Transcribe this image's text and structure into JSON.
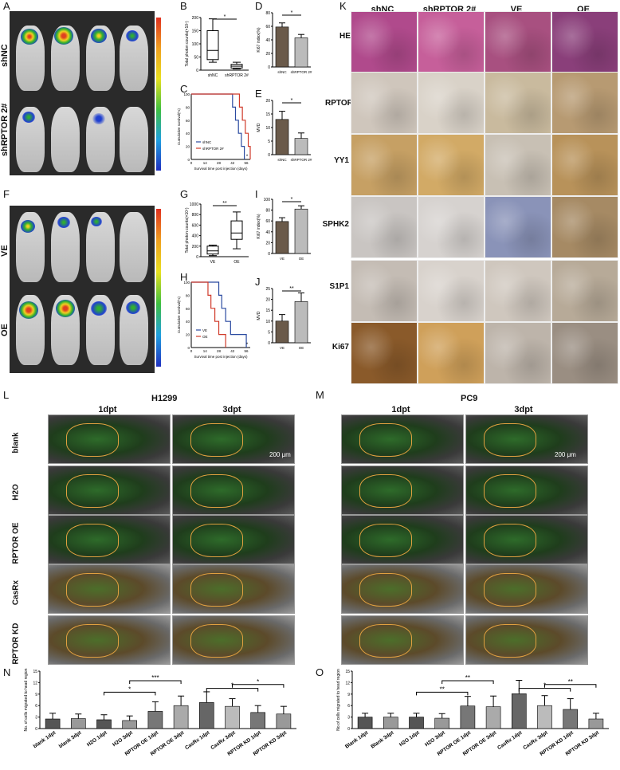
{
  "panels": {
    "A": "A",
    "B": "B",
    "C": "C",
    "D": "D",
    "E": "E",
    "F": "F",
    "G": "G",
    "H": "H",
    "I": "I",
    "J": "J",
    "K": "K",
    "L": "L",
    "M": "M",
    "N": "N",
    "O": "O"
  },
  "bioluminescence": {
    "top_groups": [
      "shNC",
      "shRPTOR 2#"
    ],
    "bottom_groups": [
      "VE",
      "OE"
    ]
  },
  "ihc": {
    "columns": [
      "shNC",
      "shRPTOR 2#",
      "VE",
      "OE"
    ],
    "rows": [
      "HE",
      "RPTOR",
      "YY1",
      "SPHK2",
      "S1P1",
      "Ki67"
    ]
  },
  "zebrafish": {
    "left_title": "H1299",
    "right_title": "PC9",
    "times": [
      "1dpt",
      "3dpt"
    ],
    "rows": [
      "blank",
      "H2O",
      "RPTOR OE",
      "CasRx",
      "RPTOR KD"
    ],
    "scale": "200 μm"
  },
  "chart_data": [
    {
      "panel": "B",
      "type": "box",
      "ylabel": "Total photon counts(×10⁷)",
      "categories": [
        "shNC",
        "shRPTOR 2#"
      ],
      "boxes": [
        {
          "min": 30,
          "q1": 40,
          "median": 75,
          "q3": 150,
          "max": 195
        },
        {
          "min": 5,
          "q1": 8,
          "median": 15,
          "q3": 22,
          "max": 30
        }
      ],
      "ylim": [
        0,
        200
      ],
      "yticks": [
        0,
        50,
        100,
        150,
        200
      ],
      "significance": "*"
    },
    {
      "panel": "C",
      "type": "line",
      "xlabel": "Survival time post injection (days)",
      "ylabel": "Cumulative survival(%)",
      "xticks": [
        0,
        14,
        28,
        42,
        56
      ],
      "yticks": [
        0,
        20,
        40,
        60,
        80,
        100
      ],
      "series": [
        {
          "name": "shNC",
          "x": [
            0,
            40,
            42,
            45,
            48,
            51,
            54
          ],
          "y": [
            100,
            100,
            80,
            60,
            40,
            20,
            0
          ]
        },
        {
          "name": "shRPTOR 2#",
          "x": [
            0,
            46,
            49,
            52,
            55,
            58,
            60
          ],
          "y": [
            100,
            100,
            80,
            60,
            40,
            20,
            0
          ]
        }
      ],
      "significance": "*"
    },
    {
      "panel": "D",
      "type": "bar",
      "ylabel": "Ki67 index(%)",
      "categories": [
        "shNC",
        "shRPTOR 2#"
      ],
      "values": [
        59,
        43
      ],
      "errors": [
        6,
        5
      ],
      "ylim": [
        0,
        80
      ],
      "yticks": [
        0,
        20,
        40,
        60,
        80
      ],
      "significance": "*"
    },
    {
      "panel": "E",
      "type": "bar",
      "ylabel": "MVD",
      "categories": [
        "shNC",
        "shRPTOR 2#"
      ],
      "values": [
        13,
        6
      ],
      "errors": [
        3,
        2
      ],
      "ylim": [
        0,
        20
      ],
      "yticks": [
        0,
        5,
        10,
        15,
        20
      ],
      "significance": "*"
    },
    {
      "panel": "G",
      "type": "box",
      "ylabel": "Total photon counts(×10⁷)",
      "categories": [
        "VE",
        "OE"
      ],
      "boxes": [
        {
          "min": 20,
          "q1": 50,
          "median": 110,
          "q3": 200,
          "max": 220
        },
        {
          "min": 150,
          "q1": 330,
          "median": 450,
          "q3": 680,
          "max": 850
        }
      ],
      "ylim": [
        0,
        1000
      ],
      "yticks": [
        0,
        200,
        400,
        600,
        800,
        1000
      ],
      "significance": "**"
    },
    {
      "panel": "H",
      "type": "line",
      "xlabel": "Survival time post injection (days)",
      "ylabel": "Cumulative survival(%)",
      "xticks": [
        0,
        14,
        28,
        42,
        56
      ],
      "yticks": [
        0,
        20,
        40,
        60,
        80,
        100
      ],
      "series": [
        {
          "name": "VE",
          "x": [
            0,
            25,
            28,
            31,
            35,
            40,
            56
          ],
          "y": [
            100,
            100,
            80,
            60,
            40,
            20,
            0
          ]
        },
        {
          "name": "OE",
          "x": [
            0,
            14,
            17,
            20,
            24,
            28,
            35
          ],
          "y": [
            100,
            100,
            80,
            60,
            40,
            20,
            0
          ]
        }
      ],
      "significance": "*"
    },
    {
      "panel": "I",
      "type": "bar",
      "ylabel": "Ki67 index(%)",
      "categories": [
        "VE",
        "OE"
      ],
      "values": [
        59,
        82
      ],
      "errors": [
        7,
        6
      ],
      "ylim": [
        0,
        100
      ],
      "yticks": [
        0,
        20,
        40,
        60,
        80,
        100
      ],
      "significance": "*"
    },
    {
      "panel": "J",
      "type": "bar",
      "ylabel": "MVD",
      "categories": [
        "VE",
        "OE"
      ],
      "values": [
        10,
        19
      ],
      "errors": [
        3,
        4
      ],
      "ylim": [
        0,
        25
      ],
      "yticks": [
        0,
        5,
        10,
        15,
        20,
        25
      ],
      "significance": "**"
    },
    {
      "panel": "N",
      "type": "bar",
      "ylabel": "No. of cells migrated to head region",
      "categories": [
        "blank 1dpt",
        "blank 3dpt",
        "H2O 1dpt",
        "H2O 3dpt",
        "RPTOR OE 1dpt",
        "RPTOR OE 3dpt",
        "CasRx 1dpt",
        "CasRx 3dpt",
        "RPTOR KD 1dpt",
        "RPTOR KD 3dpt"
      ],
      "values": [
        2.5,
        2.6,
        2.3,
        2.1,
        4.5,
        6.0,
        6.8,
        5.8,
        4.2,
        3.8
      ],
      "errors": [
        1.5,
        1.2,
        1.3,
        1.2,
        2.5,
        2.5,
        2.8,
        2.0,
        1.8,
        2.0
      ],
      "ylim": [
        0,
        15
      ],
      "yticks": [
        0,
        3,
        6,
        9,
        12,
        15
      ],
      "significance": [
        "*",
        "***",
        "*",
        "*"
      ]
    },
    {
      "panel": "O",
      "type": "bar",
      "ylabel": "No.of cells migrated to head region",
      "categories": [
        "Blank 1dpt",
        "Blank 3dpt",
        "H2O 1dpt",
        "H2O 3dpt",
        "RPTOR OE 1dpt",
        "RPTOR OE 3dpt",
        "CasRx 1dpt",
        "CasRx 3dpt",
        "RPTOR KD 1dpt",
        "RPTOR KD 3dpt"
      ],
      "values": [
        3.0,
        3.0,
        3.0,
        2.7,
        5.9,
        5.7,
        9.1,
        6.0,
        5.0,
        2.5
      ],
      "errors": [
        1.0,
        1.0,
        1.0,
        1.2,
        2.5,
        2.8,
        3.5,
        2.6,
        2.8,
        1.5
      ],
      "ylim": [
        0,
        15
      ],
      "yticks": [
        0,
        3,
        6,
        9,
        12,
        15
      ],
      "significance": [
        "**",
        "**",
        "*",
        "**"
      ]
    }
  ]
}
